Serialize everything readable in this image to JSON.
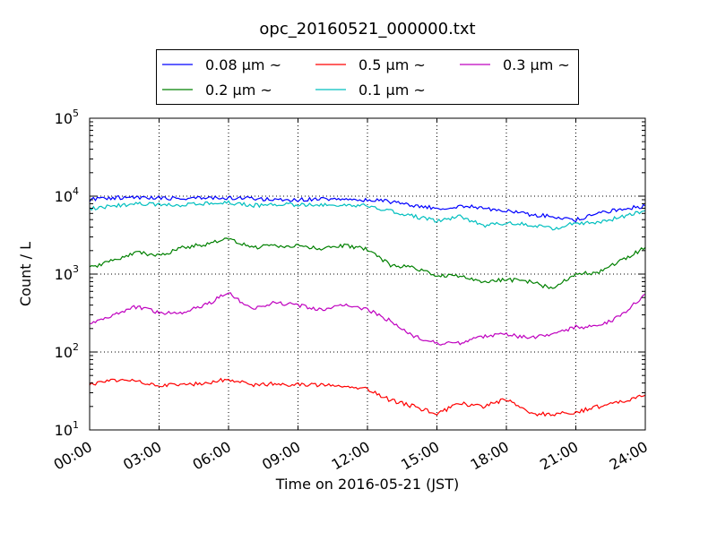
{
  "chart_data": {
    "type": "line",
    "title": "opc_20160521_000000.txt",
    "xlabel": "Time on 2016-05-21 (JST)",
    "ylabel": "Count / L",
    "yscale": "log",
    "xlim": [
      0,
      24
    ],
    "ylim": [
      10,
      100000
    ],
    "grid": true,
    "legend_position": "top-center",
    "x_ticks": [
      0,
      3,
      6,
      9,
      12,
      15,
      18,
      21,
      24
    ],
    "x_tick_labels": [
      "00:00",
      "03:00",
      "06:00",
      "09:00",
      "12:00",
      "15:00",
      "18:00",
      "21:00",
      "24:00"
    ],
    "y_ticks": [
      10,
      100,
      1000,
      10000,
      100000
    ],
    "y_tick_base": "10",
    "y_tick_exponents": [
      "1",
      "2",
      "3",
      "4",
      "5"
    ],
    "x": [
      0,
      1,
      2,
      3,
      4,
      5,
      6,
      7,
      8,
      9,
      10,
      11,
      12,
      13,
      14,
      15,
      16,
      17,
      18,
      19,
      20,
      21,
      22,
      23,
      24
    ],
    "series": [
      {
        "name": "0.08 μm ~",
        "color": "#0000ff",
        "values": [
          9000,
          9500,
          9700,
          9500,
          9400,
          9500,
          9500,
          9300,
          9000,
          9000,
          9100,
          9000,
          9000,
          8500,
          7500,
          7000,
          7500,
          7000,
          6500,
          5800,
          5500,
          5000,
          6000,
          6800,
          7500
        ]
      },
      {
        "name": "0.2 μm ~",
        "color": "#008000",
        "values": [
          1200,
          1500,
          1900,
          1700,
          2200,
          2400,
          2800,
          2200,
          2300,
          2300,
          2100,
          2300,
          2100,
          1300,
          1200,
          950,
          950,
          800,
          850,
          800,
          650,
          1000,
          1050,
          1500,
          2200
        ]
      },
      {
        "name": "0.5 μm ~",
        "color": "#ff0000",
        "values": [
          38,
          44,
          42,
          37,
          38,
          40,
          45,
          38,
          39,
          38,
          38,
          37,
          33,
          24,
          20,
          16,
          22,
          20,
          25,
          16,
          16,
          17,
          20,
          23,
          28
        ]
      },
      {
        "name": "0.1 μm ~",
        "color": "#00bfbf",
        "values": [
          6800,
          7500,
          8000,
          7800,
          7700,
          8000,
          8200,
          7600,
          7800,
          7800,
          7700,
          7700,
          7600,
          6500,
          5500,
          4800,
          5500,
          4200,
          4500,
          4300,
          3800,
          4500,
          4500,
          5500,
          6500
        ]
      },
      {
        "name": "0.3 μm ~",
        "color": "#bf00bf",
        "values": [
          220,
          300,
          380,
          320,
          320,
          400,
          580,
          350,
          430,
          400,
          350,
          400,
          350,
          250,
          160,
          130,
          130,
          160,
          170,
          150,
          170,
          210,
          210,
          300,
          550
        ]
      }
    ]
  }
}
